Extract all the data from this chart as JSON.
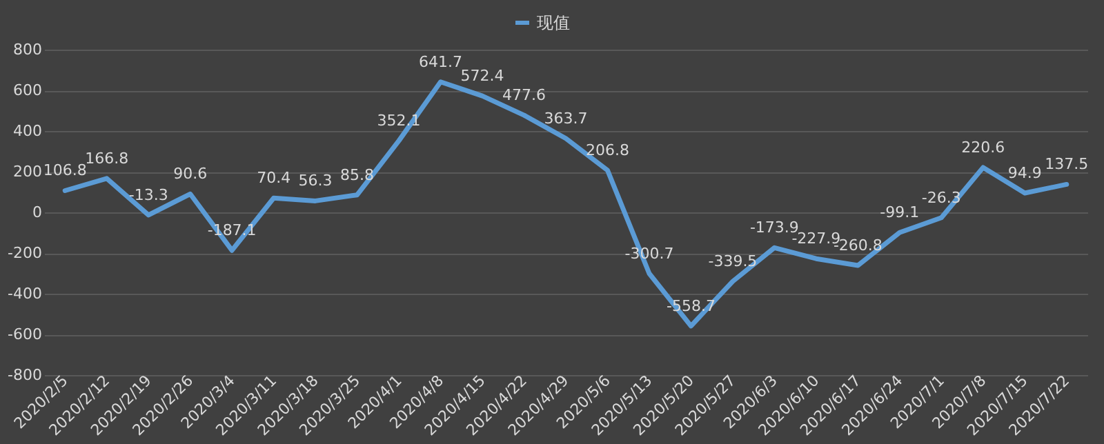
{
  "chart_data": {
    "type": "line",
    "categories": [
      "2020/2/5",
      "2020/2/12",
      "2020/2/19",
      "2020/2/26",
      "2020/3/4",
      "2020/3/11",
      "2020/3/18",
      "2020/3/25",
      "2020/4/1",
      "2020/4/8",
      "2020/4/15",
      "2020/4/22",
      "2020/4/29",
      "2020/5/6",
      "2020/5/13",
      "2020/5/20",
      "2020/5/27",
      "2020/6/3",
      "2020/6/10",
      "2020/6/17",
      "2020/6/24",
      "2020/7/1",
      "2020/7/8",
      "2020/7/15",
      "2020/7/22"
    ],
    "series": [
      {
        "name": "现值",
        "color": "#5b9bd5",
        "values": [
          106.8,
          166.8,
          -13.3,
          90.6,
          -187.1,
          70.4,
          56.3,
          85.8,
          352.1,
          641.7,
          572.4,
          477.6,
          363.7,
          206.8,
          -300.7,
          -558.7,
          -339.5,
          -173.9,
          -227.9,
          -260.8,
          -99.1,
          -26.3,
          220.6,
          94.9,
          137.5
        ]
      }
    ],
    "ylim": [
      -800,
      800
    ],
    "yticks": [
      -800,
      -600,
      -400,
      -200,
      0,
      200,
      400,
      600,
      800
    ],
    "grid": "y",
    "legend": "top",
    "data_labels": true,
    "marker": "none",
    "line_style": "solid"
  }
}
